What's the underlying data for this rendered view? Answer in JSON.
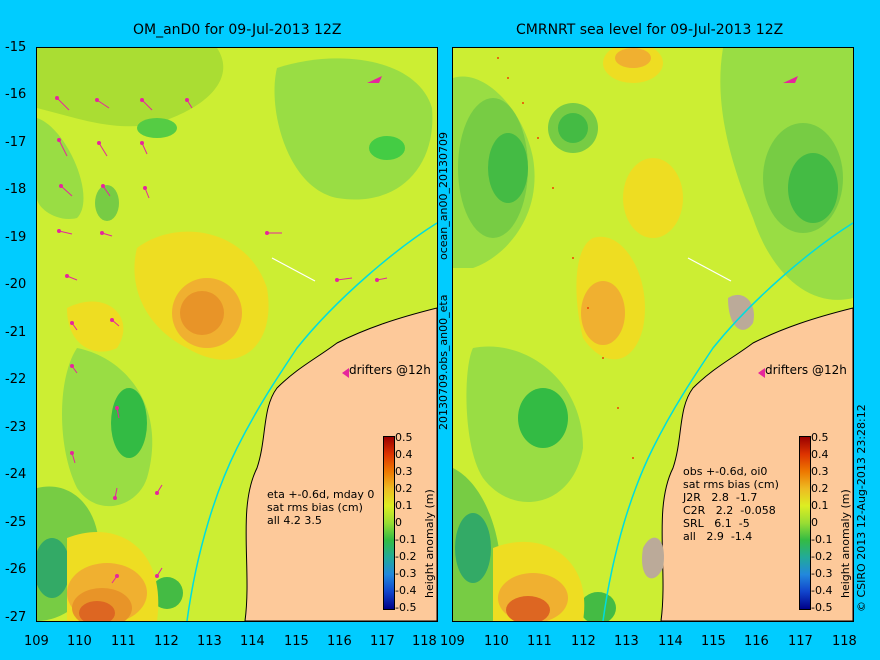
{
  "left": {
    "title": "OM_anD0 for 09-Jul-2013 12Z",
    "side_label": "ocean_an00_20130709",
    "side_label_2": "20130709.obs_an00_eta",
    "stats": "eta +-0.6d, mday 0\nsat rms bias (cm)\nall 4.2 3.5",
    "drifters": "drifters @12h"
  },
  "right": {
    "title": "CMRNRT sea level  for 09-Jul-2013 12Z",
    "side_label": "© CSIRO 2013   12-Aug-2013 23:28:12",
    "stats": "obs +-0.6d, oi0\nsat rms bias (cm)\nJ2R   2.8  -1.7\nC2R   2.2  -0.058\nSRL   6.1  -5\nall   2.9  -1.4",
    "drifters": "drifters @12h"
  },
  "y_ticks": [
    "-15",
    "-16",
    "-17",
    "-18",
    "-19",
    "-20",
    "-21",
    "-22",
    "-23",
    "-24",
    "-25",
    "-26",
    "-27"
  ],
  "x_ticks": [
    "109",
    "110",
    "111",
    "112",
    "113",
    "114",
    "115",
    "116",
    "117",
    "118"
  ],
  "colorbar": {
    "title": "height anomaly (m)",
    "ticks": [
      "0.5",
      "0.4",
      "0.3",
      "0.2",
      "0.1",
      "0",
      "-0.1",
      "-0.2",
      "-0.3",
      "-0.4",
      "-0.5"
    ]
  },
  "colors": {
    "background": "#00ccff",
    "land": "#fdc99a",
    "vector": "#e6269c",
    "coastline": "#000000",
    "isobath": "#00dddd"
  }
}
